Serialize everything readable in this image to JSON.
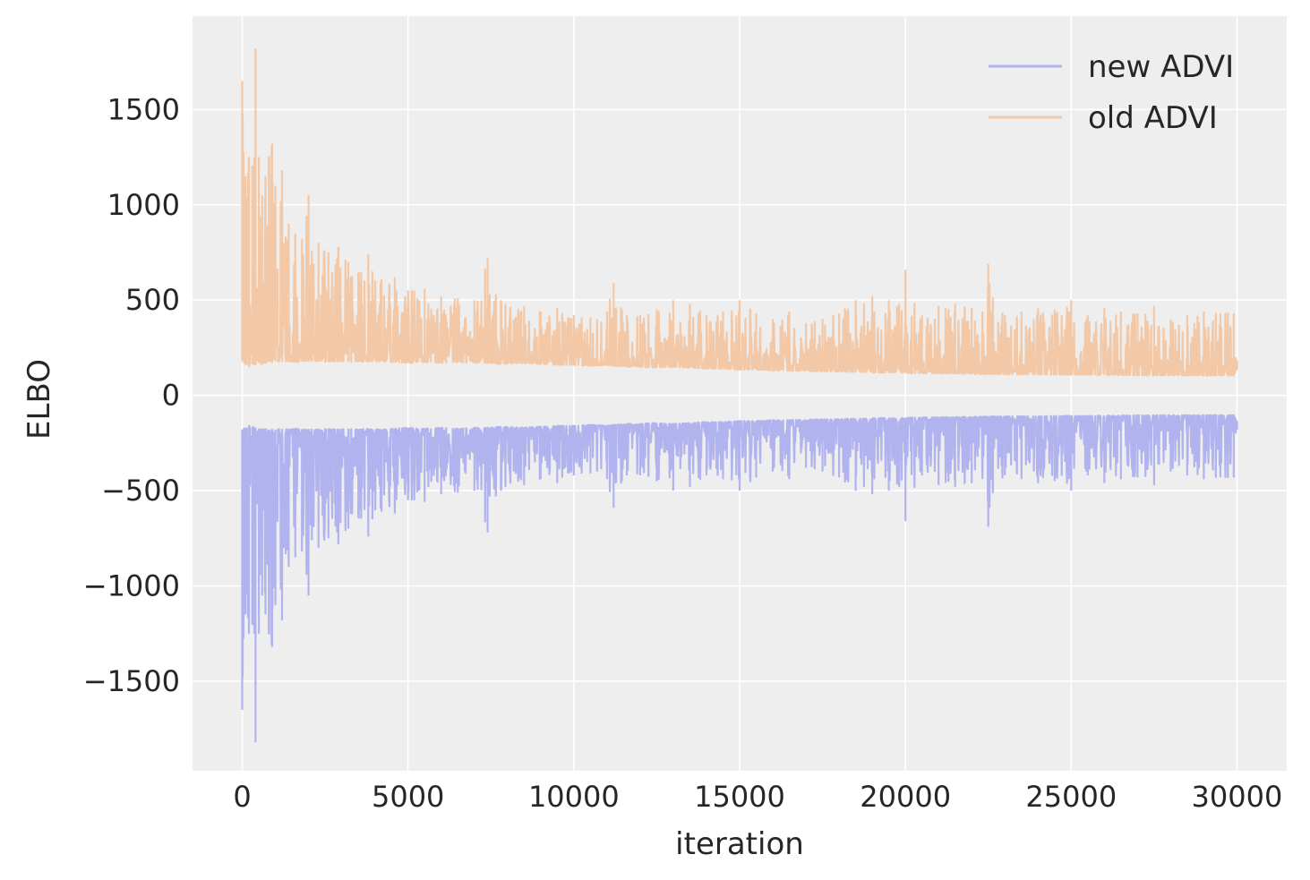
{
  "chart_data": {
    "type": "line",
    "title": "",
    "xlabel": "iteration",
    "ylabel": "ELBO",
    "xlim": [
      -1500,
      31500
    ],
    "ylim": [
      -1970,
      1990
    ],
    "xticks": [
      0,
      5000,
      10000,
      15000,
      20000,
      25000,
      30000
    ],
    "xtick_labels": [
      "0",
      "5000",
      "10000",
      "15000",
      "20000",
      "25000",
      "30000"
    ],
    "yticks": [
      -1500,
      -1000,
      -500,
      0,
      500,
      1000,
      1500
    ],
    "ytick_labels": [
      "−1500",
      "−1000",
      "−500",
      "0",
      "500",
      "1000",
      "1500"
    ],
    "grid": true,
    "legend_position": "top-right",
    "background": "#eeeeee",
    "series": [
      {
        "name": "new ADVI",
        "color": "#b1b3ee",
        "x": [
          0,
          100,
          200,
          300,
          400,
          500,
          600,
          700,
          800,
          900,
          1000,
          1200,
          1400,
          1600,
          1800,
          2000,
          2100,
          2300,
          2600,
          2900,
          3200,
          3500,
          3800,
          4200,
          4600,
          5000,
          5500,
          6000,
          6500,
          7000,
          7400,
          7800,
          8500,
          9000,
          9500,
          10000,
          10500,
          11000,
          11200,
          11600,
          12000,
          12500,
          13000,
          13500,
          14000,
          14500,
          15000,
          15500,
          16000,
          16500,
          17000,
          17500,
          18000,
          18500,
          19000,
          19500,
          20000,
          20500,
          21000,
          21500,
          22000,
          22500,
          23000,
          23500,
          24000,
          24500,
          25000,
          25500,
          26000,
          26500,
          27000,
          27500,
          28000,
          28500,
          29000,
          29500,
          29900,
          30000
        ],
        "lower": [
          -1650,
          -1150,
          -1250,
          -1200,
          -1820,
          -1250,
          -1050,
          -1150,
          -1250,
          -1320,
          -1100,
          -1180,
          -900,
          -850,
          -820,
          -1050,
          -760,
          -800,
          -750,
          -780,
          -700,
          -640,
          -740,
          -610,
          -620,
          -550,
          -560,
          -520,
          -510,
          -500,
          -720,
          -500,
          -470,
          -440,
          -460,
          -420,
          -410,
          -440,
          -590,
          -420,
          -420,
          -450,
          -500,
          -480,
          -420,
          -440,
          -500,
          -430,
          -400,
          -440,
          -380,
          -400,
          -430,
          -500,
          -520,
          -500,
          -660,
          -420,
          -470,
          -480,
          -460,
          -690,
          -420,
          -440,
          -460,
          -450,
          -500,
          -420,
          -460,
          -440,
          -430,
          -470,
          -400,
          -420,
          -440,
          -430,
          -430,
          -180
        ],
        "upper": [
          -180,
          -170,
          -160,
          -165,
          -170,
          -175,
          -180,
          -175,
          -180,
          -175,
          -180,
          -175,
          -180,
          -175,
          -180,
          -180,
          -175,
          -180,
          -175,
          -180,
          -175,
          -180,
          -175,
          -180,
          -175,
          -170,
          -175,
          -170,
          -175,
          -170,
          -170,
          -165,
          -170,
          -165,
          -160,
          -160,
          -155,
          -160,
          -155,
          -150,
          -150,
          -145,
          -150,
          -145,
          -140,
          -140,
          -135,
          -135,
          -130,
          -130,
          -128,
          -125,
          -125,
          -122,
          -120,
          -120,
          -118,
          -115,
          -115,
          -115,
          -112,
          -112,
          -110,
          -110,
          -110,
          -108,
          -108,
          -108,
          -106,
          -106,
          -105,
          -105,
          -105,
          -104,
          -104,
          -104,
          -104,
          -140
        ]
      },
      {
        "name": "old ADVI",
        "color": "#f2c8a7",
        "x": [
          0,
          100,
          200,
          300,
          400,
          500,
          600,
          700,
          800,
          900,
          1000,
          1200,
          1400,
          1600,
          1800,
          2000,
          2100,
          2300,
          2600,
          2900,
          3200,
          3500,
          3800,
          4200,
          4600,
          5000,
          5500,
          6000,
          6500,
          7000,
          7400,
          7800,
          8500,
          9000,
          9500,
          10000,
          10500,
          11000,
          11200,
          11600,
          12000,
          12500,
          13000,
          13500,
          14000,
          14500,
          15000,
          15500,
          16000,
          16500,
          17000,
          17500,
          18000,
          18500,
          19000,
          19500,
          20000,
          20500,
          21000,
          21500,
          22000,
          22500,
          23000,
          23500,
          24000,
          24500,
          25000,
          25500,
          26000,
          26500,
          27000,
          27500,
          28000,
          28500,
          29000,
          29500,
          29900,
          30000
        ],
        "lower": [
          180,
          160,
          150,
          165,
          160,
          170,
          165,
          170,
          175,
          170,
          180,
          175,
          180,
          175,
          180,
          180,
          175,
          180,
          175,
          180,
          175,
          180,
          175,
          180,
          175,
          170,
          175,
          170,
          175,
          170,
          170,
          165,
          170,
          165,
          160,
          160,
          155,
          160,
          155,
          150,
          150,
          145,
          150,
          145,
          140,
          140,
          135,
          135,
          130,
          130,
          128,
          125,
          125,
          122,
          120,
          120,
          118,
          115,
          115,
          115,
          112,
          112,
          110,
          110,
          110,
          108,
          108,
          108,
          106,
          106,
          105,
          105,
          105,
          104,
          104,
          104,
          104,
          140
        ],
        "upper": [
          1650,
          1150,
          1250,
          1200,
          1820,
          1250,
          1050,
          1150,
          1250,
          1320,
          1100,
          1180,
          900,
          850,
          820,
          1050,
          760,
          800,
          750,
          780,
          700,
          640,
          740,
          610,
          620,
          550,
          560,
          520,
          510,
          500,
          720,
          500,
          470,
          440,
          460,
          420,
          410,
          440,
          590,
          420,
          420,
          450,
          500,
          480,
          420,
          440,
          500,
          430,
          400,
          440,
          380,
          400,
          430,
          500,
          520,
          500,
          660,
          420,
          470,
          480,
          460,
          690,
          420,
          440,
          460,
          450,
          500,
          420,
          460,
          440,
          430,
          470,
          400,
          420,
          440,
          430,
          430,
          180
        ]
      }
    ]
  }
}
